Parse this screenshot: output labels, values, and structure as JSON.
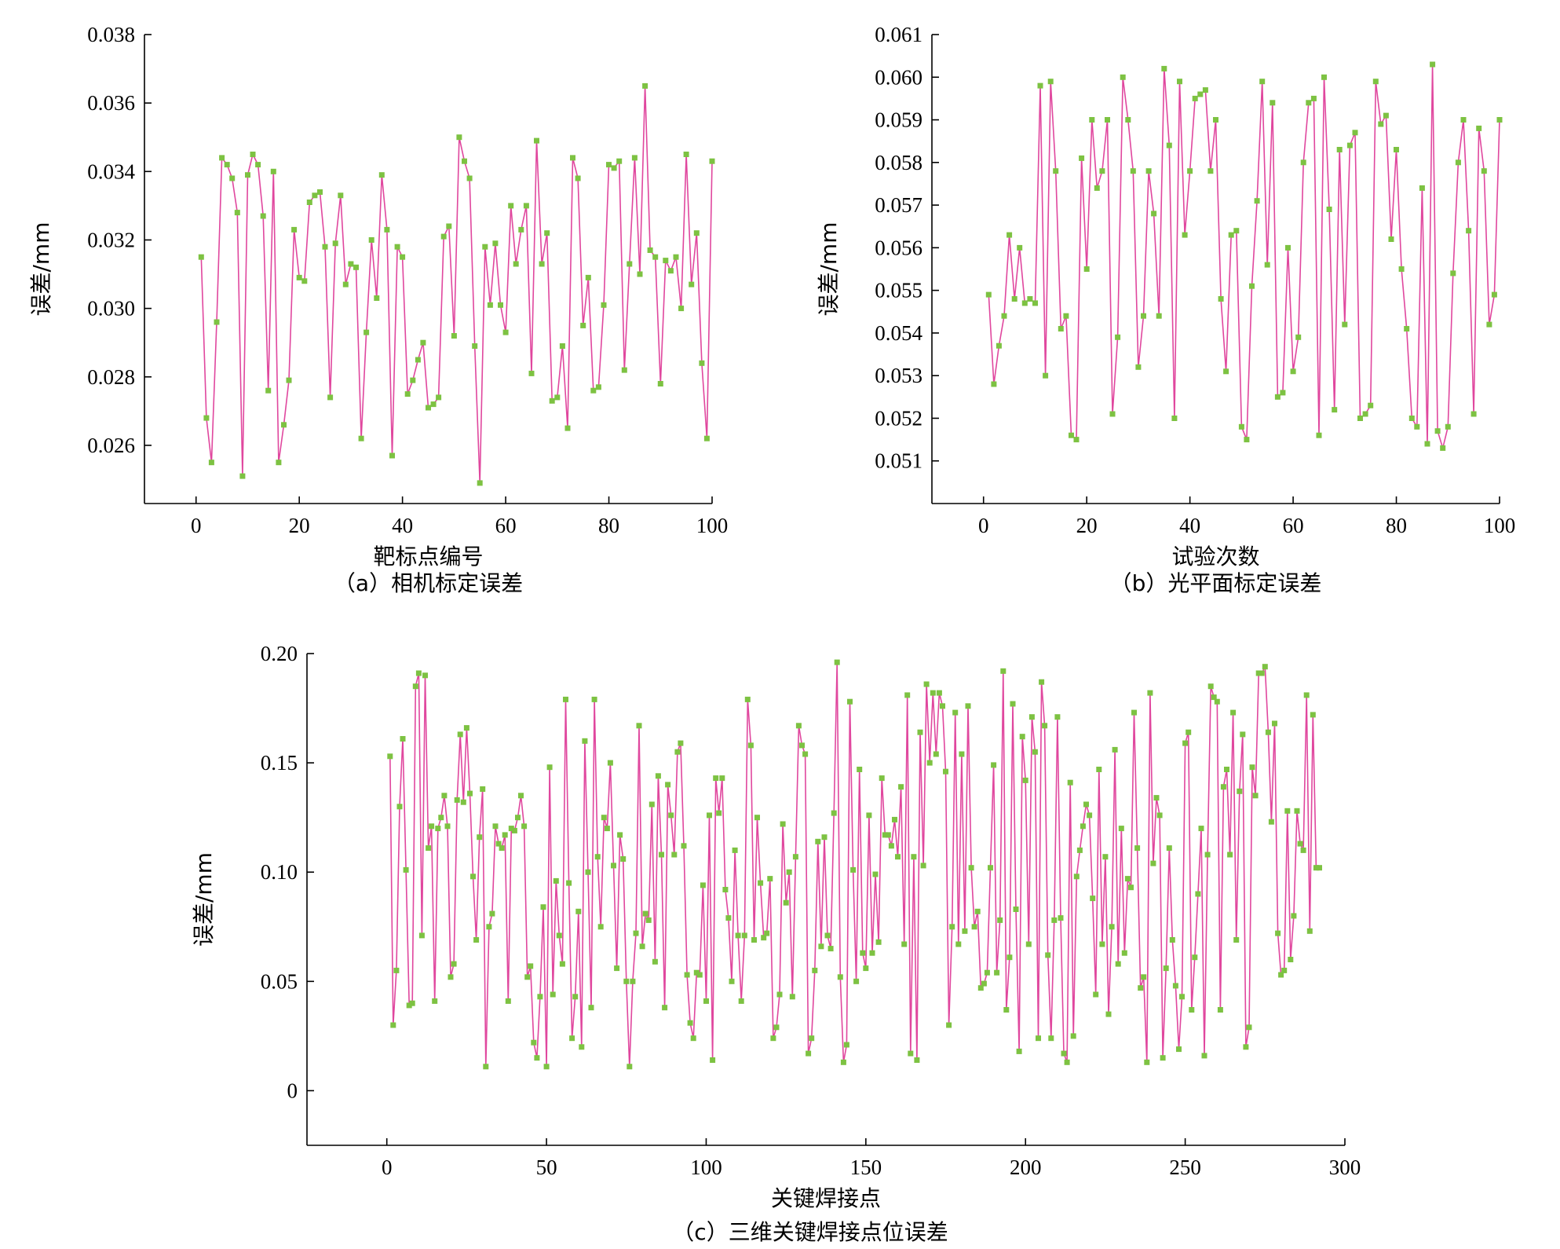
{
  "chart_data": [
    {
      "type": "line",
      "caption": "（a）相机标定误差",
      "xlabel": "靶标点编号",
      "ylabel": "误差/mm",
      "xlim": [
        -10,
        100
      ],
      "ylim": [
        0.0243,
        0.038
      ],
      "xticks": [
        0,
        20,
        40,
        60,
        80,
        100
      ],
      "xtick_labels": [
        "0",
        "20",
        "40",
        "60",
        "80",
        "100"
      ],
      "yticks": [
        0.026,
        0.028,
        0.03,
        0.032,
        0.034,
        0.036,
        0.038
      ],
      "ytick_labels": [
        "0.026",
        "0.028",
        "0.030",
        "0.032",
        "0.034",
        "0.036",
        "0.038"
      ],
      "x_start": 1,
      "values": [
        0.0315,
        0.0268,
        0.0255,
        0.0296,
        0.0344,
        0.0342,
        0.0338,
        0.0328,
        0.0251,
        0.0339,
        0.0345,
        0.0342,
        0.0327,
        0.0276,
        0.034,
        0.0255,
        0.0266,
        0.0279,
        0.0323,
        0.0309,
        0.0308,
        0.0331,
        0.0333,
        0.0334,
        0.0318,
        0.0274,
        0.0319,
        0.0333,
        0.0307,
        0.0313,
        0.0312,
        0.0262,
        0.0293,
        0.032,
        0.0303,
        0.0339,
        0.0323,
        0.0257,
        0.0318,
        0.0315,
        0.0275,
        0.0279,
        0.0285,
        0.029,
        0.0271,
        0.0272,
        0.0274,
        0.0321,
        0.0324,
        0.0292,
        0.035,
        0.0343,
        0.0338,
        0.0289,
        0.0249,
        0.0318,
        0.0301,
        0.0319,
        0.0301,
        0.0293,
        0.033,
        0.0313,
        0.0323,
        0.033,
        0.0281,
        0.0349,
        0.0313,
        0.0322,
        0.0273,
        0.0274,
        0.0289,
        0.0265,
        0.0344,
        0.0338,
        0.0295,
        0.0309,
        0.0276,
        0.0277,
        0.0301,
        0.0342,
        0.0341,
        0.0343,
        0.0282,
        0.0313,
        0.0344,
        0.031,
        0.0365,
        0.0317,
        0.0315,
        0.0278,
        0.0314,
        0.0311,
        0.0315,
        0.03,
        0.0345,
        0.0307,
        0.0322,
        0.0284,
        0.0262,
        0.0343
      ]
    },
    {
      "type": "line",
      "caption": "（b）光平面标定误差",
      "xlabel": "试验次数",
      "ylabel": "误差/mm",
      "xlim": [
        -10,
        100
      ],
      "ylim": [
        0.05,
        0.061
      ],
      "xticks": [
        0,
        20,
        40,
        60,
        80,
        100
      ],
      "xtick_labels": [
        "0",
        "20",
        "40",
        "60",
        "80",
        "100"
      ],
      "yticks": [
        0.051,
        0.052,
        0.053,
        0.054,
        0.055,
        0.056,
        0.057,
        0.058,
        0.059,
        0.06,
        0.061
      ],
      "ytick_labels": [
        "0.051",
        "0.052",
        "0.053",
        "0.054",
        "0.055",
        "0.056",
        "0.057",
        "0.058",
        "0.059",
        "0.060",
        "0.061"
      ],
      "x_start": 1,
      "values": [
        0.0549,
        0.0528,
        0.0537,
        0.0544,
        0.0563,
        0.0548,
        0.056,
        0.0547,
        0.0548,
        0.0547,
        0.0598,
        0.053,
        0.0599,
        0.0578,
        0.0541,
        0.0544,
        0.0516,
        0.0515,
        0.0581,
        0.0555,
        0.059,
        0.0574,
        0.0578,
        0.059,
        0.0521,
        0.0539,
        0.06,
        0.059,
        0.0578,
        0.0532,
        0.0544,
        0.0578,
        0.0568,
        0.0544,
        0.0602,
        0.0584,
        0.052,
        0.0599,
        0.0563,
        0.0578,
        0.0595,
        0.0596,
        0.0597,
        0.0578,
        0.059,
        0.0548,
        0.0531,
        0.0563,
        0.0564,
        0.0518,
        0.0515,
        0.0551,
        0.0571,
        0.0599,
        0.0556,
        0.0594,
        0.0525,
        0.0526,
        0.056,
        0.0531,
        0.0539,
        0.058,
        0.0594,
        0.0595,
        0.0516,
        0.06,
        0.0569,
        0.0522,
        0.0583,
        0.0542,
        0.0584,
        0.0587,
        0.052,
        0.0521,
        0.0523,
        0.0599,
        0.0589,
        0.0591,
        0.0562,
        0.0583,
        0.0555,
        0.0541,
        0.052,
        0.0518,
        0.0574,
        0.0514,
        0.0603,
        0.0517,
        0.0513,
        0.0518,
        0.0554,
        0.058,
        0.059,
        0.0564,
        0.0521,
        0.0588,
        0.0578,
        0.0542,
        0.0549,
        0.059
      ]
    },
    {
      "type": "line",
      "caption": "（c）三维关键焊接点位误差",
      "xlabel": "关键焊接点",
      "ylabel": "误差/mm",
      "xlim": [
        -25,
        300
      ],
      "ylim": [
        -0.025,
        0.2
      ],
      "xticks": [
        0,
        50,
        100,
        150,
        200,
        250,
        300
      ],
      "xtick_labels": [
        "0",
        "50",
        "100",
        "150",
        "200",
        "250",
        "300"
      ],
      "yticks": [
        0,
        0.05,
        0.1,
        0.15,
        0.2
      ],
      "ytick_labels": [
        "0",
        "0.05",
        "0.10",
        "0.15",
        "0.20"
      ],
      "x_start": 1,
      "values": [
        0.153,
        0.03,
        0.055,
        0.13,
        0.161,
        0.101,
        0.039,
        0.04,
        0.185,
        0.191,
        0.071,
        0.19,
        0.111,
        0.121,
        0.041,
        0.12,
        0.125,
        0.135,
        0.121,
        0.052,
        0.058,
        0.133,
        0.163,
        0.132,
        0.166,
        0.136,
        0.098,
        0.069,
        0.116,
        0.138,
        0.011,
        0.075,
        0.081,
        0.121,
        0.113,
        0.111,
        0.117,
        0.041,
        0.12,
        0.119,
        0.125,
        0.135,
        0.121,
        0.052,
        0.057,
        0.022,
        0.015,
        0.043,
        0.084,
        0.011,
        0.148,
        0.044,
        0.096,
        0.071,
        0.058,
        0.179,
        0.095,
        0.024,
        0.043,
        0.082,
        0.02,
        0.16,
        0.1,
        0.038,
        0.179,
        0.107,
        0.075,
        0.125,
        0.12,
        0.15,
        0.103,
        0.056,
        0.117,
        0.106,
        0.05,
        0.011,
        0.05,
        0.072,
        0.167,
        0.066,
        0.081,
        0.078,
        0.131,
        0.059,
        0.144,
        0.108,
        0.038,
        0.14,
        0.126,
        0.108,
        0.155,
        0.159,
        0.112,
        0.053,
        0.031,
        0.024,
        0.054,
        0.053,
        0.094,
        0.041,
        0.126,
        0.014,
        0.143,
        0.127,
        0.143,
        0.092,
        0.079,
        0.05,
        0.11,
        0.071,
        0.041,
        0.071,
        0.179,
        0.158,
        0.069,
        0.125,
        0.095,
        0.07,
        0.072,
        0.097,
        0.024,
        0.029,
        0.044,
        0.122,
        0.086,
        0.1,
        0.043,
        0.107,
        0.167,
        0.158,
        0.154,
        0.017,
        0.024,
        0.055,
        0.114,
        0.066,
        0.116,
        0.071,
        0.065,
        0.127,
        0.196,
        0.052,
        0.013,
        0.021,
        0.178,
        0.101,
        0.05,
        0.147,
        0.063,
        0.056,
        0.126,
        0.063,
        0.099,
        0.068,
        0.143,
        0.117,
        0.117,
        0.112,
        0.124,
        0.107,
        0.139,
        0.067,
        0.181,
        0.017,
        0.107,
        0.014,
        0.164,
        0.103,
        0.186,
        0.15,
        0.182,
        0.154,
        0.182,
        0.176,
        0.146,
        0.03,
        0.075,
        0.173,
        0.067,
        0.154,
        0.073,
        0.176,
        0.102,
        0.075,
        0.082,
        0.047,
        0.049,
        0.054,
        0.102,
        0.149,
        0.054,
        0.078,
        0.192,
        0.037,
        0.061,
        0.177,
        0.083,
        0.018,
        0.162,
        0.142,
        0.067,
        0.171,
        0.155,
        0.024,
        0.187,
        0.167,
        0.062,
        0.024,
        0.078,
        0.171,
        0.079,
        0.017,
        0.013,
        0.141,
        0.025,
        0.098,
        0.11,
        0.121,
        0.131,
        0.126,
        0.088,
        0.044,
        0.147,
        0.067,
        0.107,
        0.035,
        0.075,
        0.156,
        0.058,
        0.12,
        0.063,
        0.097,
        0.093,
        0.173,
        0.111,
        0.047,
        0.052,
        0.013,
        0.182,
        0.104,
        0.134,
        0.126,
        0.015,
        0.056,
        0.111,
        0.069,
        0.048,
        0.019,
        0.043,
        0.159,
        0.164,
        0.037,
        0.061,
        0.09,
        0.12,
        0.016,
        0.108,
        0.185,
        0.18,
        0.178,
        0.037,
        0.139,
        0.147,
        0.108,
        0.173,
        0.069,
        0.137,
        0.163,
        0.02,
        0.029,
        0.148,
        0.135,
        0.191,
        0.191,
        0.194,
        0.164,
        0.123,
        0.168,
        0.072,
        0.053,
        0.055,
        0.128,
        0.06,
        0.08,
        0.128,
        0.113,
        0.11,
        0.181,
        0.073,
        0.172,
        0.102,
        0.102
      ]
    }
  ],
  "colors": {
    "line": "#e0479e",
    "marker": "#7dc242",
    "axis": "#000000"
  }
}
